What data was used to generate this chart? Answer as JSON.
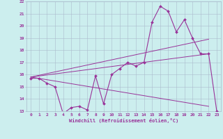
{
  "xlabel": "Windchill (Refroidissement éolien,°C)",
  "xlim": [
    -0.5,
    23.5
  ],
  "ylim": [
    13,
    22
  ],
  "ytick_vals": [
    13,
    14,
    15,
    16,
    17,
    18,
    19,
    20,
    21,
    22
  ],
  "xtick_vals": [
    0,
    1,
    2,
    3,
    4,
    5,
    6,
    7,
    8,
    9,
    10,
    11,
    12,
    13,
    14,
    15,
    16,
    17,
    18,
    19,
    20,
    21,
    22,
    23
  ],
  "background_color": "#cceeee",
  "grid_color": "#aabbcc",
  "line_color": "#993399",
  "series1_x": [
    0,
    1,
    2,
    3,
    4,
    5,
    6,
    7,
    8,
    9,
    10,
    11,
    12,
    13,
    14,
    15,
    16,
    17,
    18,
    19,
    20,
    21,
    22,
    23
  ],
  "series1_y": [
    15.7,
    15.7,
    15.3,
    15.0,
    12.8,
    13.3,
    13.4,
    13.1,
    15.9,
    13.6,
    16.0,
    16.5,
    17.0,
    16.7,
    17.0,
    20.3,
    21.6,
    21.2,
    19.5,
    20.5,
    19.0,
    17.7,
    17.7,
    13.0
  ],
  "series2_x": [
    0,
    22
  ],
  "series2_y": [
    15.8,
    18.9
  ],
  "series3_x": [
    0,
    22
  ],
  "series3_y": [
    15.8,
    17.7
  ],
  "series4_x": [
    0,
    22
  ],
  "series4_y": [
    15.8,
    13.4
  ]
}
